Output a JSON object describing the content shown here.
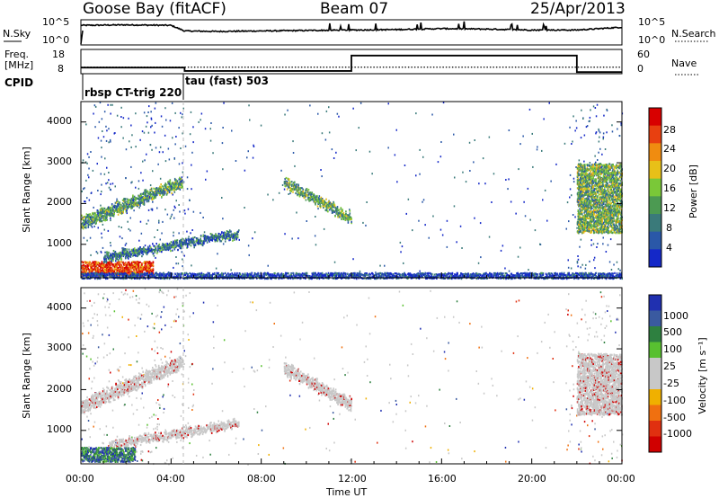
{
  "header": {
    "station": "Goose Bay (fitACF)",
    "beam": "Beam 07",
    "date": "25/Apr/2013"
  },
  "top_panels": {
    "nsky_label": "N.Sky",
    "nsky_ticks": [
      "10^5",
      "10^0"
    ],
    "nsearch_label": "N.Search",
    "nsearch_ticks": [
      "10^5",
      "10^0"
    ],
    "freq_label": "Freq.",
    "freq_unit": "[MHz]",
    "freq_ticks": [
      "18",
      "8"
    ],
    "nave_label": "Nave",
    "nave_ticks": [
      "60",
      "0"
    ],
    "cpid_label": "CPID",
    "cpid_segments": [
      "rbsp CT-trig 220",
      "tau (fast) 503"
    ]
  },
  "x_axis": {
    "label": "Time UT",
    "ticks": [
      "00:00",
      "04:00",
      "08:00",
      "12:00",
      "16:00",
      "20:00",
      "00:00"
    ]
  },
  "power_panel": {
    "ylabel": "Slant Range [km]",
    "yticks": [
      "4000",
      "3000",
      "2000",
      "1000"
    ],
    "cbar_label": "Power [dB]",
    "cbar_ticks": [
      "28",
      "24",
      "20",
      "16",
      "12",
      "8",
      "4"
    ]
  },
  "velocity_panel": {
    "ylabel": "Slant Range [km]",
    "yticks": [
      "4000",
      "3000",
      "2000",
      "1000"
    ],
    "cbar_label": "Velocity [m s⁻¹]",
    "cbar_ticks": [
      "1000",
      "500",
      "100",
      "25",
      "-25",
      "-100",
      "-500",
      "-1000"
    ]
  },
  "colors": {
    "power_scale": [
      "#1428c8",
      "#2a58a8",
      "#3a7a7a",
      "#4c9a52",
      "#7ac838",
      "#e8c018",
      "#f08c10",
      "#e84010",
      "#d80000"
    ],
    "velocity_scale": [
      "#2030b0",
      "#3a5aa0",
      "#2e8040",
      "#58c030",
      "#c8c8c8",
      "#c8c8c8",
      "#f0b000",
      "#f07010",
      "#e03010",
      "#d00000"
    ],
    "ground_scatter": "#c8c8c8"
  },
  "chart_data": [
    {
      "type": "line",
      "title": "N.Sky / N.Search",
      "x": [
        0,
        2,
        4,
        4.6,
        6,
        8,
        10,
        12,
        14,
        16,
        18,
        20,
        22,
        24
      ],
      "series": [
        {
          "name": "N.Sky",
          "values": [
            4.0,
            4.1,
            4.0,
            2.8,
            2.7,
            2.8,
            2.9,
            3.0,
            3.1,
            3.3,
            3.2,
            3.0,
            3.0,
            3.6
          ]
        }
      ],
      "xlabel": "",
      "ylabel": "",
      "ylim_log10": [
        0,
        5
      ]
    },
    {
      "type": "line",
      "title": "Freq. / Nave",
      "series": [
        {
          "name": "Freq. [MHz]",
          "steps": [
            [
              0,
              4.6,
              10.5
            ],
            [
              4.6,
              24,
              10.5
            ]
          ]
        },
        {
          "name": "Nave",
          "steps": [
            [
              0,
              4.6,
              14
            ],
            [
              4.6,
              12,
              5
            ],
            [
              12,
              22,
              46
            ],
            [
              22,
              24,
              2
            ]
          ]
        }
      ],
      "freq_ylim": [
        8,
        18
      ],
      "nave_ylim": [
        0,
        60
      ]
    },
    {
      "type": "heatmap",
      "title": "Power",
      "xlabel": "Time UT",
      "ylabel": "Slant Range [km]",
      "xlim_hours": [
        0,
        24
      ],
      "ylim_km": [
        180,
        4500
      ],
      "cbar_label": "Power [dB]",
      "cbar_ticks": [
        4,
        8,
        12,
        16,
        20,
        24,
        28
      ],
      "features": [
        {
          "name": "near-range band",
          "t0": 0,
          "t1": 3.2,
          "r0": 250,
          "r1": 600,
          "power": 26
        },
        {
          "name": "rising 1.5-hop band",
          "t0": 0,
          "t1": 4.5,
          "r_start": 1550,
          "r_end": 2550,
          "width_km": 260,
          "power": 12
        },
        {
          "name": "rising 1-hop band",
          "t0": 1,
          "t1": 7,
          "r_start": 700,
          "r_end": 1280,
          "width_km": 160,
          "power": 9
        },
        {
          "name": "midday descending band",
          "t0": 9,
          "t1": 12,
          "r_start": 2550,
          "r_end": 1650,
          "width_km": 220,
          "power": 13
        },
        {
          "name": "late block",
          "t0": 22,
          "t1": 24,
          "r0": 1300,
          "r1": 3000,
          "power": 14
        },
        {
          "name": "bottom range strip",
          "t0": 0,
          "t1": 24,
          "r0": 180,
          "r1": 320,
          "power": 5
        }
      ]
    },
    {
      "type": "heatmap",
      "title": "Velocity",
      "xlabel": "Time UT",
      "ylabel": "Slant Range [km]",
      "xlim_hours": [
        0,
        24
      ],
      "ylim_km": [
        180,
        4500
      ],
      "cbar_label": "Velocity [m s⁻¹]",
      "cbar_ticks": [
        1000,
        500,
        100,
        25,
        -25,
        -100,
        -500,
        -1000
      ],
      "features": [
        {
          "name": "ground scatter 1.5-hop",
          "t0": 0,
          "t1": 4.5,
          "r_start": 1600,
          "r_end": 2700,
          "width_km": 300,
          "velocity": 0
        },
        {
          "name": "ground scatter 1-hop",
          "t0": 1.2,
          "t1": 7,
          "r_start": 650,
          "r_end": 1200,
          "width_km": 180,
          "velocity": 0
        },
        {
          "name": "ground scatter midday",
          "t0": 9,
          "t1": 12,
          "r_start": 2550,
          "r_end": 1650,
          "width_km": 260,
          "velocity": 0
        },
        {
          "name": "late block",
          "t0": 22,
          "t1": 24,
          "r0": 1400,
          "r1": 2900,
          "velocity": 0
        },
        {
          "name": "near-range ionospheric",
          "t0": 0,
          "t1": 2.4,
          "r0": 250,
          "r1": 600,
          "velocity": 150
        }
      ]
    }
  ]
}
